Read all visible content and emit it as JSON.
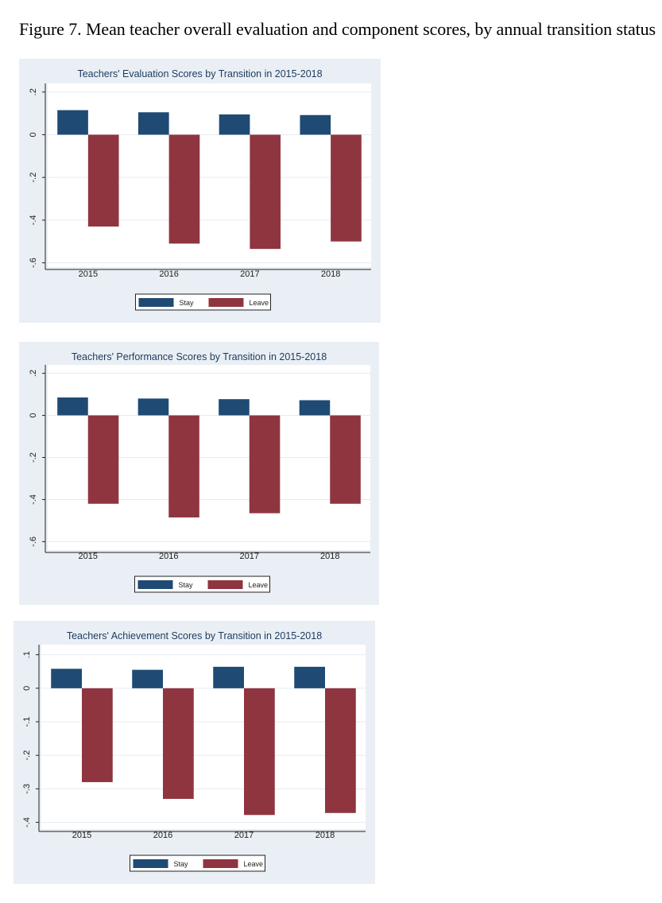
{
  "figure_title": "Figure 7. Mean teacher overall evaluation and component scores, by annual transition status",
  "colors": {
    "stay": "#1f4a73",
    "leave": "#8f3540",
    "panel_bg": "#e9eff4",
    "plot_bg": "#ffffff",
    "grid": "#e6ebf0",
    "title": "#1e3a5f"
  },
  "chart_data": [
    {
      "type": "bar",
      "title": "Teachers' Evaluation Scores by Transition in 2015-2018",
      "categories": [
        "2015",
        "2016",
        "2017",
        "2018"
      ],
      "series": [
        {
          "name": "Stay",
          "values": [
            0.115,
            0.105,
            0.095,
            0.092
          ]
        },
        {
          "name": "Leave",
          "values": [
            -0.43,
            -0.51,
            -0.535,
            -0.5
          ]
        }
      ],
      "ylim": [
        -0.62,
        0.24
      ],
      "yticks": [
        0.2,
        0,
        -0.2,
        -0.4,
        -0.6
      ],
      "ytick_labels": [
        ".2",
        "0",
        "-.2",
        "-.4",
        "-.6"
      ],
      "grid": true,
      "legend": "bottom"
    },
    {
      "type": "bar",
      "title": "Teachers' Performance Scores by Transition in 2015-2018",
      "categories": [
        "2015",
        "2016",
        "2017",
        "2018"
      ],
      "series": [
        {
          "name": "Stay",
          "values": [
            0.085,
            0.08,
            0.077,
            0.072
          ]
        },
        {
          "name": "Leave",
          "values": [
            -0.42,
            -0.485,
            -0.465,
            -0.42
          ]
        }
      ],
      "ylim": [
        -0.64,
        0.24
      ],
      "yticks": [
        0.2,
        0,
        -0.2,
        -0.4,
        -0.6
      ],
      "ytick_labels": [
        ".2",
        "0",
        "-.2",
        "-.4",
        "-.6"
      ],
      "grid": true,
      "legend": "bottom"
    },
    {
      "type": "bar",
      "title": "Teachers' Achievement Scores by Transition in 2015-2018",
      "categories": [
        "2015",
        "2016",
        "2017",
        "2018"
      ],
      "series": [
        {
          "name": "Stay",
          "values": [
            0.058,
            0.055,
            0.064,
            0.064
          ]
        },
        {
          "name": "Leave",
          "values": [
            -0.28,
            -0.33,
            -0.378,
            -0.372
          ]
        }
      ],
      "ylim": [
        -0.42,
        0.13
      ],
      "yticks": [
        0.1,
        0,
        -0.1,
        -0.2,
        -0.3,
        -0.4
      ],
      "ytick_labels": [
        ".1",
        "0",
        "-.1",
        "-.2",
        "-.3",
        "-.4"
      ],
      "grid": true,
      "legend": "bottom"
    }
  ]
}
